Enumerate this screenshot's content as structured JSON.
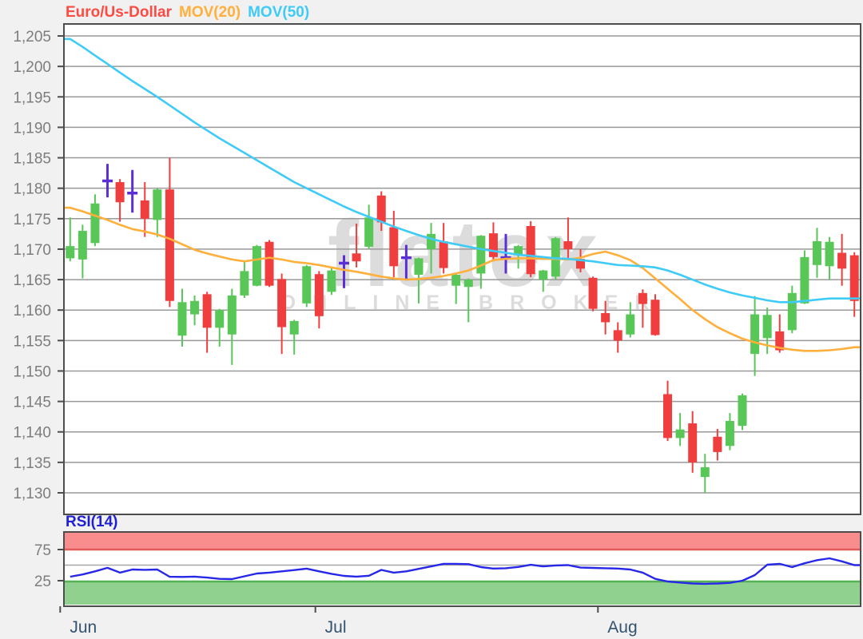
{
  "legend": {
    "instrument": "Euro/Us-Dollar",
    "mov20": "MOV(20)",
    "mov50": "MOV(50)"
  },
  "watermark": {
    "line1": "flatex",
    "line2": "ONLINE BROKER"
  },
  "colors": {
    "background": "#f1f1f1",
    "panel_bg": "#ffffff",
    "panel_border": "#4d4d4d",
    "grid": "#999999",
    "axis_label": "#7d7d7d",
    "month_label": "#33536f",
    "instrument": "#fb4b42",
    "mov20": "#ffaf3a",
    "mov50": "#3fcbf8",
    "candle_up": "#58c758",
    "candle_down": "#f03d3d",
    "candle_doji": "#5b2ed6",
    "rsi_line": "#2727e8",
    "rsi_label": "#1f1fd4",
    "band_red_fill": "#f98d8d",
    "band_red_edge": "#e25c5c",
    "band_green_fill": "#90d190",
    "band_green_edge": "#55b255",
    "rsi_mid_line": "#a8a8a8",
    "watermark": "#dcdcdc"
  },
  "main_chart": {
    "y_tick_labels": [
      "1,205",
      "1,200",
      "1,195",
      "1,190",
      "1,185",
      "1,180",
      "1,175",
      "1,170",
      "1,165",
      "1,160",
      "1,155",
      "1,150",
      "1,145",
      "1,140",
      "1,135",
      "1,130"
    ],
    "y_tick_values": [
      1205,
      1200,
      1195,
      1190,
      1185,
      1180,
      1175,
      1170,
      1165,
      1160,
      1155,
      1150,
      1145,
      1140,
      1135,
      1130
    ],
    "y_max": 1205,
    "y_min": 1130
  },
  "rsi_panel": {
    "label": "RSI(14)",
    "upper_tick": "75",
    "lower_tick": "25",
    "upper": 75,
    "lower": 25,
    "mid": 50
  },
  "x_axis": {
    "months": [
      {
        "label": "Jun",
        "boundary": -0.3
      },
      {
        "label": "Jul",
        "boundary": 20.2
      },
      {
        "label": "Aug",
        "boundary": 42.9
      }
    ]
  },
  "chart_data": [
    {
      "type": "candlestick",
      "title": "Euro/Us-Dollar",
      "price_scale": "values ×1000 (1170 = 1.1700 EUR/USD)",
      "ylim": [
        1130,
        1205
      ],
      "grid": true,
      "doji_indices": [
        3,
        5,
        22,
        27,
        35
      ],
      "candles": [
        [
          1168.5,
          1175.2,
          1168.0,
          1170.5
        ],
        [
          1168.3,
          1174.0,
          1165.2,
          1173.0
        ],
        [
          1171.0,
          1179.0,
          1170.5,
          1177.5
        ],
        [
          1181.0,
          1184.0,
          1178.5,
          1181.2
        ],
        [
          1181.0,
          1181.5,
          1174.5,
          1177.7
        ],
        [
          1179.0,
          1183.0,
          1176.0,
          1179.2
        ],
        [
          1178.0,
          1181.0,
          1172.0,
          1175.0
        ],
        [
          1174.8,
          1180.0,
          1172.0,
          1179.8
        ],
        [
          1179.8,
          1185.0,
          1160.5,
          1161.5
        ],
        [
          1155.8,
          1163.5,
          1154.0,
          1161.3
        ],
        [
          1159.3,
          1162.4,
          1157.5,
          1161.5
        ],
        [
          1162.6,
          1163.0,
          1153.0,
          1157.1
        ],
        [
          1157.1,
          1160.2,
          1154.0,
          1160.0
        ],
        [
          1156.0,
          1163.5,
          1151.0,
          1162.4
        ],
        [
          1162.4,
          1168.0,
          1162.0,
          1166.4
        ],
        [
          1164.0,
          1170.7,
          1163.9,
          1170.5
        ],
        [
          1171.2,
          1171.5,
          1163.8,
          1164.0
        ],
        [
          1165.1,
          1166.0,
          1152.8,
          1157.2
        ],
        [
          1156.0,
          1158.4,
          1152.7,
          1158.2
        ],
        [
          1161.1,
          1167.4,
          1160.5,
          1167.2
        ],
        [
          1165.9,
          1166.4,
          1157.0,
          1159.0
        ],
        [
          1163.0,
          1167.0,
          1162.5,
          1166.5
        ],
        [
          1167.4,
          1169.0,
          1163.6,
          1167.7
        ],
        [
          1169.3,
          1174.2,
          1167.0,
          1168.0
        ],
        [
          1170.4,
          1177.3,
          1170.0,
          1175.2
        ],
        [
          1178.8,
          1179.5,
          1173.0,
          1174.4
        ],
        [
          1173.6,
          1176.3,
          1165.4,
          1167.2
        ],
        [
          1168.3,
          1170.7,
          1164.9,
          1168.6
        ],
        [
          1165.8,
          1168.6,
          1161.1,
          1168.5
        ],
        [
          1170.0,
          1174.3,
          1166.0,
          1172.5
        ],
        [
          1171.3,
          1174.3,
          1166.0,
          1166.9
        ],
        [
          1164.0,
          1166.0,
          1161.0,
          1165.8
        ],
        [
          1163.8,
          1165.2,
          1158.0,
          1165.0
        ],
        [
          1166.0,
          1172.3,
          1163.5,
          1172.2
        ],
        [
          1172.6,
          1174.4,
          1168.0,
          1168.7
        ],
        [
          1168.3,
          1172.5,
          1166.0,
          1168.6
        ],
        [
          1169.0,
          1170.7,
          1166.8,
          1170.5
        ],
        [
          1173.8,
          1174.6,
          1165.4,
          1165.9
        ],
        [
          1165.0,
          1166.6,
          1163.0,
          1166.5
        ],
        [
          1165.5,
          1172.0,
          1165.0,
          1171.8
        ],
        [
          1171.3,
          1175.2,
          1168.5,
          1170.0
        ],
        [
          1168.4,
          1170.0,
          1166.2,
          1166.8
        ],
        [
          1165.3,
          1165.5,
          1159.8,
          1160.2
        ],
        [
          1159.5,
          1161.5,
          1156.0,
          1158.0
        ],
        [
          1156.7,
          1158.0,
          1153.0,
          1155.0
        ],
        [
          1156.0,
          1161.3,
          1155.5,
          1159.3
        ],
        [
          1162.8,
          1163.4,
          1157.1,
          1161.0
        ],
        [
          1161.7,
          1162.6,
          1155.8,
          1155.9
        ],
        [
          1146.2,
          1148.4,
          1138.5,
          1139.0
        ],
        [
          1139.0,
          1143.1,
          1137.7,
          1140.4
        ],
        [
          1141.4,
          1143.4,
          1133.3,
          1135.0
        ],
        [
          1132.6,
          1136.4,
          1130.0,
          1134.2
        ],
        [
          1139.2,
          1140.5,
          1135.3,
          1136.7
        ],
        [
          1137.7,
          1143.1,
          1137.0,
          1141.8
        ],
        [
          1141.0,
          1146.3,
          1140.3,
          1146.0
        ],
        [
          1152.8,
          1162.3,
          1149.2,
          1159.3
        ],
        [
          1155.4,
          1160.4,
          1152.8,
          1159.2
        ],
        [
          1156.5,
          1159.3,
          1153.0,
          1153.4
        ],
        [
          1156.7,
          1164.0,
          1156.2,
          1162.8
        ],
        [
          1161.1,
          1169.8,
          1161.0,
          1168.7
        ],
        [
          1167.4,
          1173.5,
          1165.3,
          1171.3
        ],
        [
          1167.2,
          1172.0,
          1165.0,
          1171.2
        ],
        [
          1169.4,
          1172.5,
          1164.0,
          1166.8
        ],
        [
          1169.0,
          1169.5,
          1158.9,
          1161.5
        ]
      ],
      "overlays": [
        {
          "name": "MOV(20)",
          "values": [
            1176.8,
            1176.2,
            1175.5,
            1174.8,
            1174.0,
            1173.3,
            1172.9,
            1172.4,
            1171.7,
            1170.8,
            1169.9,
            1169.3,
            1168.8,
            1168.3,
            1168.0,
            1168.3,
            1168.6,
            1168.3,
            1167.9,
            1167.7,
            1167.4,
            1167.0,
            1166.6,
            1166.3,
            1165.9,
            1165.5,
            1165.2,
            1165.0,
            1165.1,
            1165.3,
            1165.6,
            1166.0,
            1166.5,
            1167.3,
            1168.2,
            1168.4,
            1168.5,
            1168.5,
            1168.4,
            1168.4,
            1168.3,
            1168.6,
            1169.2,
            1169.6,
            1169.0,
            1168.2,
            1166.9,
            1165.2,
            1163.5,
            1161.8,
            1160.0,
            1158.5,
            1157.2,
            1156.2,
            1155.3,
            1154.7,
            1154.2,
            1153.8,
            1153.5,
            1153.3,
            1153.3,
            1153.4,
            1153.6,
            1153.9
          ]
        },
        {
          "name": "MOV(50)",
          "values": [
            1204.5,
            1203.2,
            1201.8,
            1200.4,
            1199.0,
            1197.6,
            1196.3,
            1195.0,
            1193.6,
            1192.2,
            1190.8,
            1189.5,
            1188.2,
            1187.0,
            1185.8,
            1184.6,
            1183.4,
            1182.2,
            1181.0,
            1180.0,
            1179.0,
            1178.0,
            1177.0,
            1176.1,
            1175.3,
            1174.5,
            1173.7,
            1173.0,
            1172.3,
            1171.7,
            1171.2,
            1170.8,
            1170.4,
            1170.0,
            1169.7,
            1169.4,
            1169.1,
            1168.9,
            1168.7,
            1168.5,
            1168.4,
            1168.2,
            1168.0,
            1167.7,
            1167.4,
            1167.3,
            1167.2,
            1167.0,
            1166.5,
            1165.8,
            1165.0,
            1164.2,
            1163.5,
            1162.9,
            1162.4,
            1162.0,
            1161.6,
            1161.3,
            1161.3,
            1161.5,
            1161.7,
            1161.9,
            1161.9,
            1161.9
          ]
        }
      ]
    },
    {
      "type": "line",
      "title": "RSI(14)",
      "ylim": [
        0,
        100
      ],
      "overbought": 75,
      "oversold": 25,
      "values": [
        31.4,
        35,
        40,
        45.6,
        38,
        42.9,
        42.5,
        43,
        31.3,
        31,
        31.5,
        30,
        28,
        27.6,
        32,
        36.5,
        38,
        40,
        42,
        44.4,
        40,
        36,
        32.7,
        31.5,
        33,
        42.3,
        38,
        40,
        44,
        48,
        52,
        52,
        51.5,
        46.8,
        44.5,
        45,
        47,
        50.5,
        48,
        49.5,
        50,
        46,
        45.5,
        45,
        44.5,
        42.9,
        38,
        28,
        23.7,
        22,
        20.5,
        20,
        20.5,
        21.5,
        25,
        34,
        50.7,
        52,
        46.8,
        53,
        58,
        60.9,
        56,
        50
      ]
    }
  ]
}
